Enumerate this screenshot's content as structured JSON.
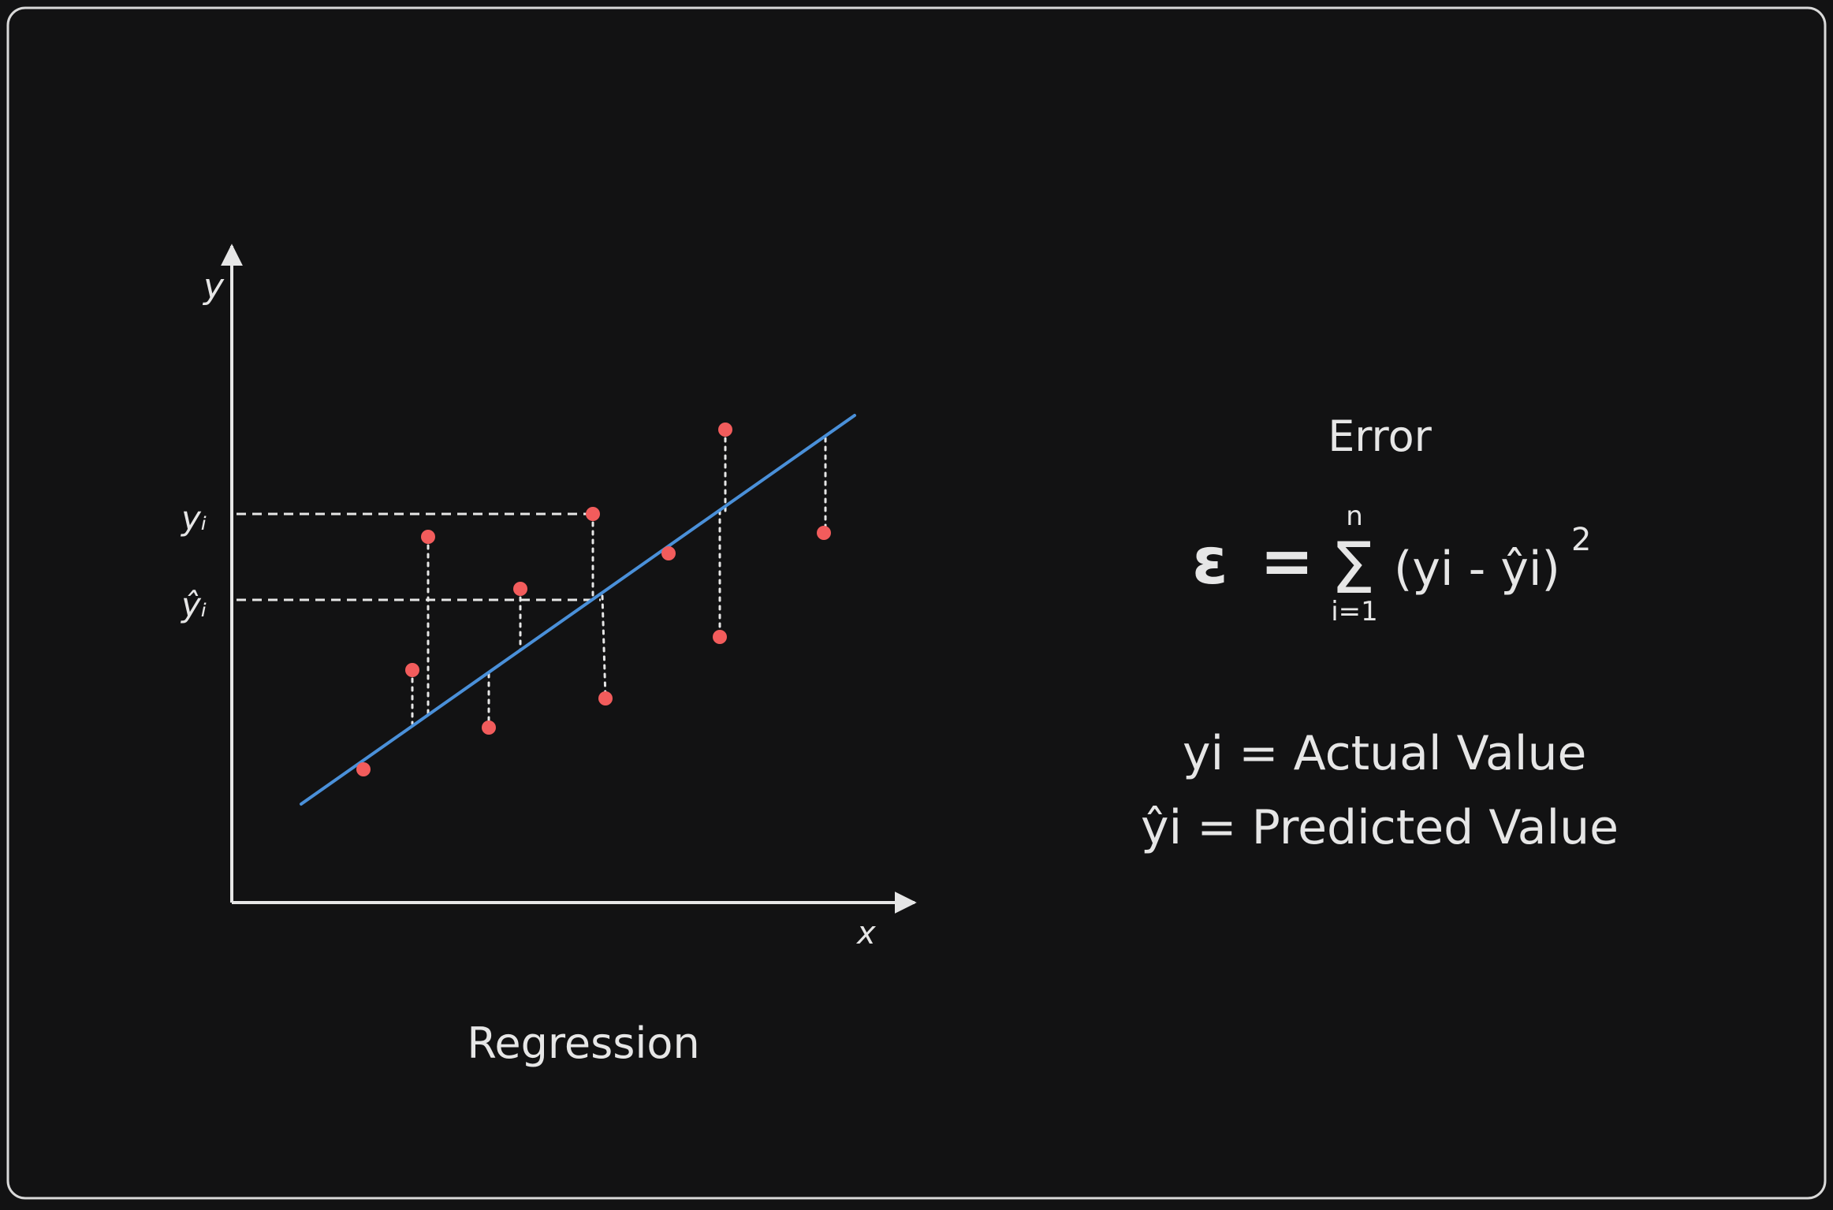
{
  "diagram": {
    "caption": "Regression",
    "x_axis_label": "x",
    "y_axis_label": "y",
    "y_tick_actual": "yᵢ",
    "y_tick_predicted": "ŷᵢ"
  },
  "formula": {
    "title": "Error",
    "epsilon": "ε",
    "equals": "=",
    "sigma": "Σ",
    "sum_upper": "n",
    "sum_lower": "i=1",
    "body": "(yi - ŷi)",
    "exponent": "2"
  },
  "legend": {
    "actual": "yi = Actual Value",
    "predicted": "ŷi = Predicted Value"
  },
  "colors": {
    "background": "#121213",
    "frame": "#d9d9d9",
    "foreground": "#e6e6e6",
    "regression_line": "#4a90d9",
    "point": "#f25c5c"
  }
}
